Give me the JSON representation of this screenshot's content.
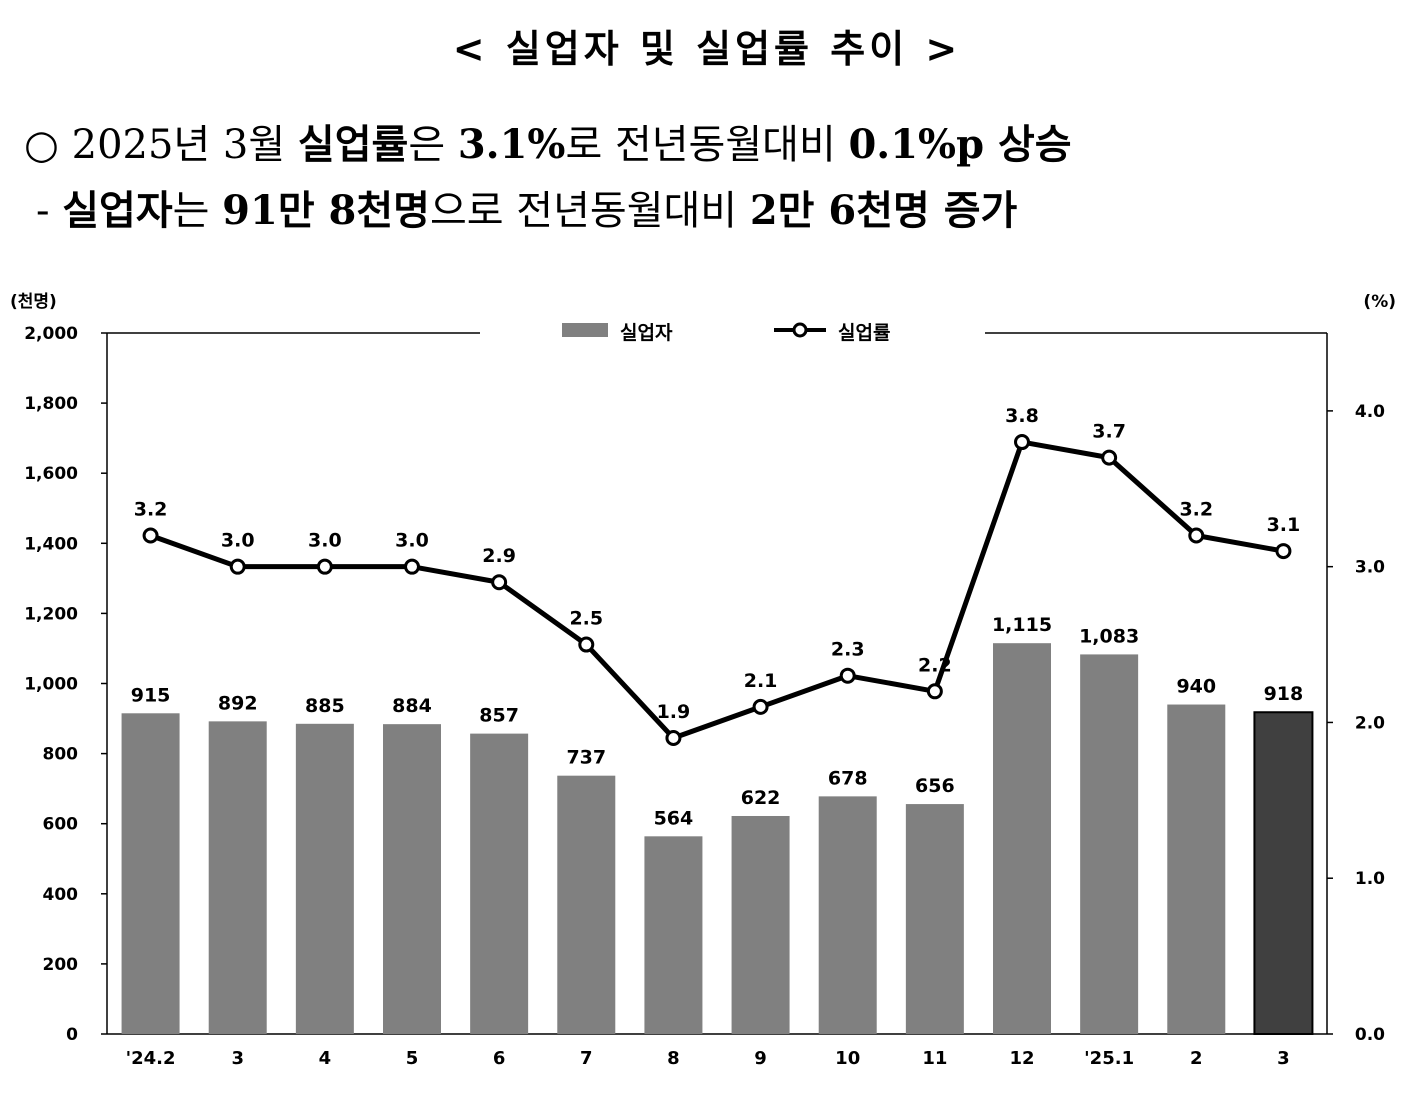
{
  "header": {
    "title": "< 실업자 및 실업률 추이 >"
  },
  "summary": {
    "line1": {
      "bullet": "○",
      "t1": " 2025년 3월 ",
      "t2": "실업률",
      "t3": "은 ",
      "t4": "3.1%",
      "t5": "로 전년동월대비 ",
      "t6": "0.1%p 상승"
    },
    "line2": {
      "t1": "- ",
      "t2": "실업자",
      "t3": "는 ",
      "t4": "91만 8천명",
      "t5": "으로 전년동월대비 ",
      "t6": "2만 6천명 증가"
    }
  },
  "colors": {
    "bar": "#808080",
    "bar_highlight": "#404040",
    "line": "#000000",
    "marker_fill": "#ffffff"
  },
  "chart_data": {
    "type": "bar",
    "left_unit": "(천명)",
    "right_unit": "(%)",
    "legend": {
      "position": "top-center",
      "bar_label": "실업자",
      "line_label": "실업률"
    },
    "categories": [
      "'24.2",
      "3",
      "4",
      "5",
      "6",
      "7",
      "8",
      "9",
      "10",
      "11",
      "12",
      "'25.1",
      "2",
      "3"
    ],
    "series": [
      {
        "name": "실업자",
        "kind": "bar",
        "axis": "left",
        "values": [
          915,
          892,
          885,
          884,
          857,
          737,
          564,
          622,
          678,
          656,
          1115,
          1083,
          940,
          918
        ],
        "labels": [
          "915",
          "892",
          "885",
          "884",
          "857",
          "737",
          "564",
          "622",
          "678",
          "656",
          "1,115",
          "1,083",
          "940",
          "918"
        ],
        "highlight_index": 13
      },
      {
        "name": "실업률",
        "kind": "line",
        "axis": "right",
        "values": [
          3.2,
          3.0,
          3.0,
          3.0,
          2.9,
          2.5,
          1.9,
          2.1,
          2.3,
          2.2,
          3.8,
          3.7,
          3.2,
          3.1
        ],
        "labels": [
          "3.2",
          "3.0",
          "3.0",
          "3.0",
          "2.9",
          "2.5",
          "1.9",
          "2.1",
          "2.3",
          "2.2",
          "3.8",
          "3.7",
          "3.2",
          "3.1"
        ]
      }
    ],
    "y_left": {
      "range": [
        0,
        2000
      ],
      "ticks": [
        0,
        200,
        400,
        600,
        800,
        1000,
        1200,
        1400,
        1600,
        1800,
        2000
      ],
      "tick_labels": [
        "0",
        "200",
        "400",
        "600",
        "800",
        "1,000",
        "1,200",
        "1,400",
        "1,600",
        "1,800",
        "2,000"
      ]
    },
    "y_right": {
      "range": [
        0,
        4.5
      ],
      "ticks": [
        0,
        1,
        2,
        3,
        4
      ],
      "tick_labels": [
        "0.0",
        "1.0",
        "2.0",
        "3.0",
        "4.0"
      ]
    },
    "grid": false
  }
}
